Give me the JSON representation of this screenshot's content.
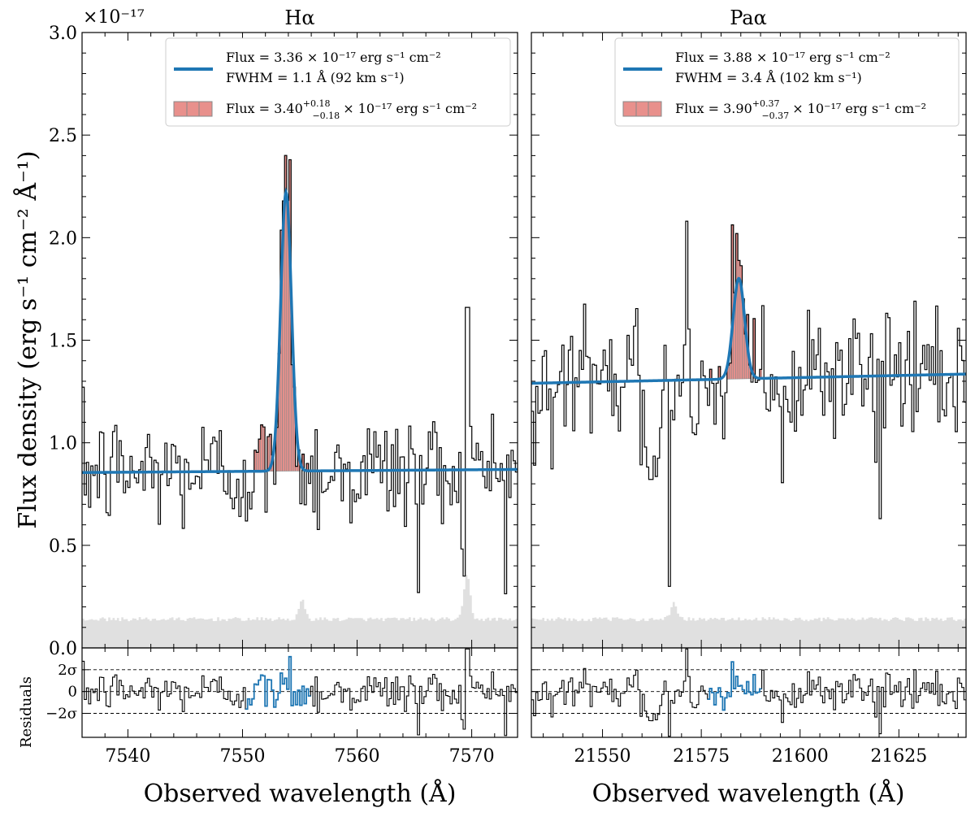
{
  "chart_data": [
    {
      "type": "line",
      "panel": "left",
      "title": "Hα",
      "xlabel": "Observed wavelength (Å)",
      "ylabel": "Flux density (erg s⁻¹ cm⁻² Å⁻¹)",
      "exponent_label": "×10⁻¹⁷",
      "xlim": [
        7536,
        7574
      ],
      "ylim": [
        0.0,
        3.0
      ],
      "xticks": [
        7540,
        7550,
        7560,
        7570
      ],
      "yticks": [
        0.0,
        0.5,
        1.0,
        1.5,
        2.0,
        2.5,
        3.0
      ],
      "ytick_labels": [
        "0.0",
        "0.5",
        "1.0",
        "1.5",
        "2.0",
        "2.5",
        "3.0"
      ],
      "series": [
        {
          "name": "Observed spectrum",
          "style": "step",
          "color": "#000000"
        },
        {
          "name": "Gaussian fit",
          "color": "#1f77b4",
          "continuum": [
            0.855,
            0.87
          ],
          "amplitude": 1.36,
          "center": 7553.8,
          "sigma": 0.47
        },
        {
          "name": "Integrated flux region",
          "color": "#e8908c",
          "x_range": [
            7550.1,
            7556.1
          ]
        },
        {
          "name": "Noise",
          "color": "#e0e0e0",
          "level": 0.14,
          "bumps": [
            {
              "x": 7555.2,
              "height": 0.09
            },
            {
              "x": 7569.6,
              "height": 0.22
            }
          ]
        }
      ],
      "legend": {
        "placement": "top-right",
        "fit_flux": "Flux = 3.36 × 10⁻¹⁷ erg s⁻¹ cm⁻²",
        "fit_fwhm": "FWHM = 1.1 Å (92 km s⁻¹)",
        "integrated_flux": "Flux = 3.40",
        "integrated_sup": "+0.18",
        "integrated_sub": "−0.18",
        "integrated_rest": "× 10⁻¹⁷ erg s⁻¹ cm⁻²"
      },
      "residuals": {
        "ylabel": "Residuals",
        "ylim": [
          -4.2,
          4.0
        ],
        "yticks": [
          2,
          0,
          -2
        ],
        "ytick_labels": [
          "2σ",
          "0",
          "−2σ"
        ]
      }
    },
    {
      "type": "line",
      "panel": "right",
      "title": "Paα",
      "xlabel": "Observed wavelength (Å)",
      "xlim": [
        21532,
        21642
      ],
      "ylim": [
        0.0,
        3.0
      ],
      "xticks": [
        21550,
        21575,
        21600,
        21625
      ],
      "series": [
        {
          "name": "Observed spectrum",
          "style": "step",
          "color": "#000000"
        },
        {
          "name": "Gaussian fit",
          "color": "#1f77b4",
          "continuum": [
            1.29,
            1.335
          ],
          "amplitude": 0.49,
          "center": 21584.5,
          "sigma": 1.45
        },
        {
          "name": "Integrated flux region",
          "color": "#e8908c",
          "x_range": [
            21576.5,
            21590.5
          ]
        },
        {
          "name": "Noise",
          "color": "#e0e0e0",
          "level": 0.14,
          "bumps": [
            {
              "x": 21568,
              "height": 0.08
            }
          ]
        }
      ],
      "legend": {
        "placement": "top-right",
        "fit_flux": "Flux = 3.88 × 10⁻¹⁷ erg s⁻¹ cm⁻²",
        "fit_fwhm": "FWHM = 3.4 Å (102 km s⁻¹)",
        "integrated_flux": "Flux = 3.90",
        "integrated_sup": "+0.37",
        "integrated_sub": "−0.37",
        "integrated_rest": "× 10⁻¹⁷ erg s⁻¹ cm⁻²"
      },
      "residuals": {
        "ylim": [
          -4.2,
          4.0
        ],
        "yticks": [
          2,
          0,
          -2
        ]
      }
    }
  ]
}
